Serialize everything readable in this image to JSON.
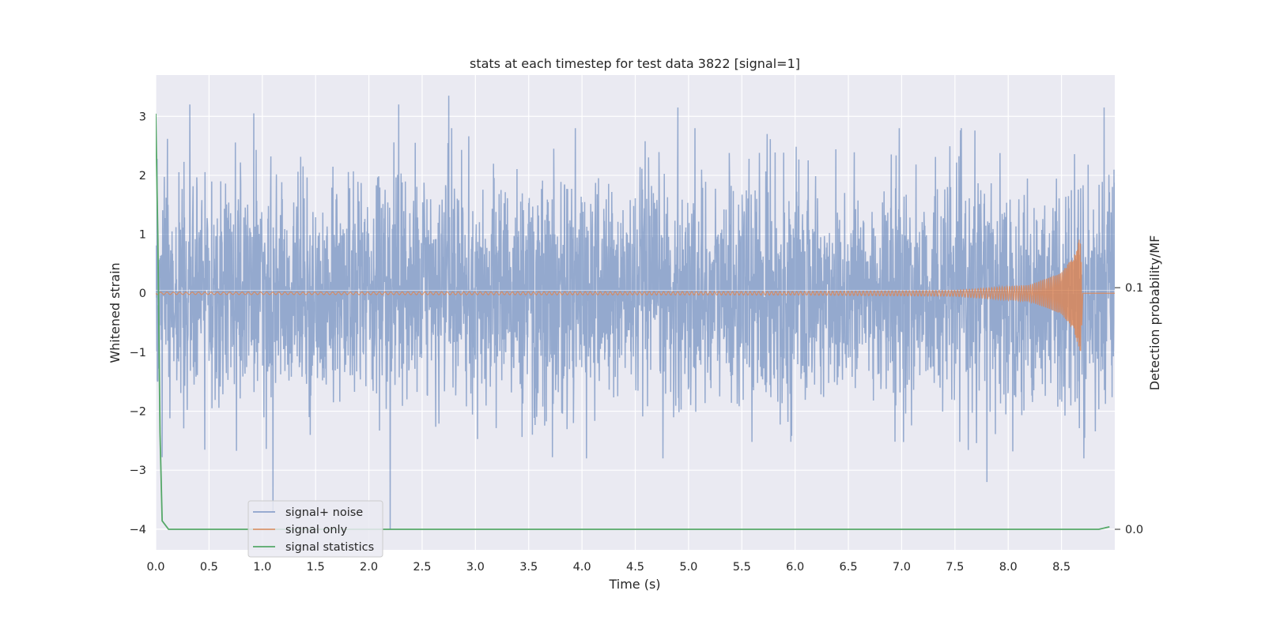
{
  "chart_data": {
    "type": "line",
    "title": "stats at each timestep for test data 3822 [signal=1]",
    "xlabel": "Time (s)",
    "ylabel": "Whitened strain",
    "ylabel_right": "Detection probability/MF",
    "xlim": [
      0.0,
      9.0
    ],
    "ylim": [
      -4.35,
      3.7
    ],
    "ylim_right": [
      -0.0085,
      0.188
    ],
    "x_ticks": [
      "0.0",
      "0.5",
      "1.0",
      "1.5",
      "2.0",
      "2.5",
      "3.0",
      "3.5",
      "4.0",
      "4.5",
      "5.0",
      "5.5",
      "6.0",
      "6.5",
      "7.0",
      "7.5",
      "8.0",
      "8.5"
    ],
    "y_ticks": [
      "3",
      "2",
      "1",
      "0",
      "−1",
      "−2",
      "−3",
      "−4"
    ],
    "y_ticks_right": [
      "0.1",
      "0.0"
    ],
    "grid": true,
    "legend_position": "lower-left",
    "colors": {
      "background": "#eaeaf2",
      "grid": "#ffffff",
      "noise": "#4c72b0",
      "signal": "#dd8452",
      "stats": "#55a868"
    },
    "series": [
      {
        "name": "signal+ noise",
        "axis": "left",
        "description_values": "whitened noise, roughly ±2 band with spikes reaching about 3.3 and -4",
        "peaks": [
          {
            "x": 0.32,
            "y": 3.2
          },
          {
            "x": 0.92,
            "y": 3.05
          },
          {
            "x": 1.1,
            "y": -3.7
          },
          {
            "x": 2.2,
            "y": -4.0
          },
          {
            "x": 2.28,
            "y": 3.2
          },
          {
            "x": 2.75,
            "y": 3.35
          },
          {
            "x": 4.9,
            "y": 3.15
          },
          {
            "x": 7.8,
            "y": -3.2
          },
          {
            "x": 8.9,
            "y": 3.15
          }
        ]
      },
      {
        "name": "signal only",
        "axis": "left",
        "description_values": "chirp waveform, amplitude near 0 growing to about 1.05 at t = 8.68 s",
        "envelope": [
          [
            0.0,
            0.02
          ],
          [
            6.0,
            0.03
          ],
          [
            7.5,
            0.05
          ],
          [
            8.2,
            0.14
          ],
          [
            8.5,
            0.35
          ],
          [
            8.62,
            0.65
          ],
          [
            8.68,
            1.05
          ],
          [
            8.7,
            0.0
          ]
        ]
      },
      {
        "name": "signal statistics",
        "axis": "right",
        "x": [
          0.0,
          0.02,
          0.04,
          0.06,
          0.12,
          1.0,
          2.0,
          3.0,
          4.0,
          5.0,
          6.0,
          7.0,
          8.0,
          8.85,
          8.95
        ],
        "y": [
          0.172,
          0.12,
          0.04,
          0.0035,
          0.0,
          0.0,
          0.0,
          0.0,
          0.0,
          0.0,
          0.0,
          0.0,
          0.0,
          0.0,
          0.001
        ]
      }
    ]
  }
}
